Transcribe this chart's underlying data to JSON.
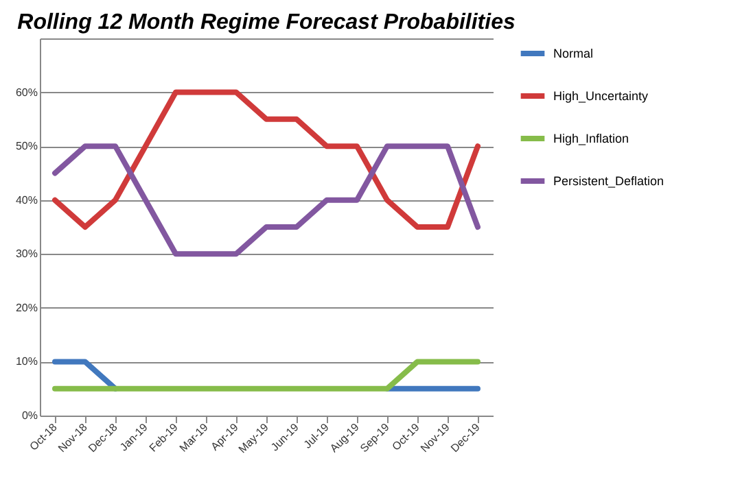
{
  "chart_data": {
    "type": "line",
    "title": "Rolling 12 Month Regime Forecast Probabilities",
    "categories": [
      "Oct-18",
      "Nov-18",
      "Dec-18",
      "Jan-19",
      "Feb-19",
      "Mar-19",
      "Apr-19",
      "May-19",
      "Jun-19",
      "Jul-19",
      "Aug-19",
      "Sep-19",
      "Oct-19",
      "Nov-19",
      "Dec-19"
    ],
    "series": [
      {
        "name": "Normal",
        "color": "#4178be",
        "values": [
          10,
          10,
          5,
          null,
          null,
          null,
          null,
          null,
          null,
          null,
          null,
          5,
          5,
          5,
          5
        ]
      },
      {
        "name": "High_Uncertainty",
        "color": "#d03a3a",
        "values": [
          40,
          35,
          40,
          50,
          60,
          60,
          60,
          55,
          55,
          50,
          50,
          40,
          35,
          35,
          50
        ]
      },
      {
        "name": "High_Inflation",
        "color": "#86bc4a",
        "values": [
          5,
          5,
          5,
          5,
          5,
          5,
          5,
          5,
          5,
          5,
          5,
          5,
          10,
          10,
          10
        ]
      },
      {
        "name": "Persistent_Deflation",
        "color": "#8257a0",
        "values": [
          45,
          50,
          50,
          40,
          30,
          30,
          30,
          35,
          35,
          40,
          40,
          50,
          50,
          50,
          35
        ]
      }
    ],
    "ylim": [
      0,
      70
    ],
    "yticks": [
      {
        "value": 0,
        "label": "0%"
      },
      {
        "value": 10,
        "label": "10%"
      },
      {
        "value": 20,
        "label": "20%"
      },
      {
        "value": 30,
        "label": "30%"
      },
      {
        "value": 40,
        "label": "40%"
      },
      {
        "value": 50,
        "label": "50%"
      },
      {
        "value": 60,
        "label": "60%"
      },
      {
        "value": 70,
        "label": null
      }
    ],
    "grid": "y",
    "legend": "right",
    "marker": "none",
    "line_style": "solid"
  }
}
